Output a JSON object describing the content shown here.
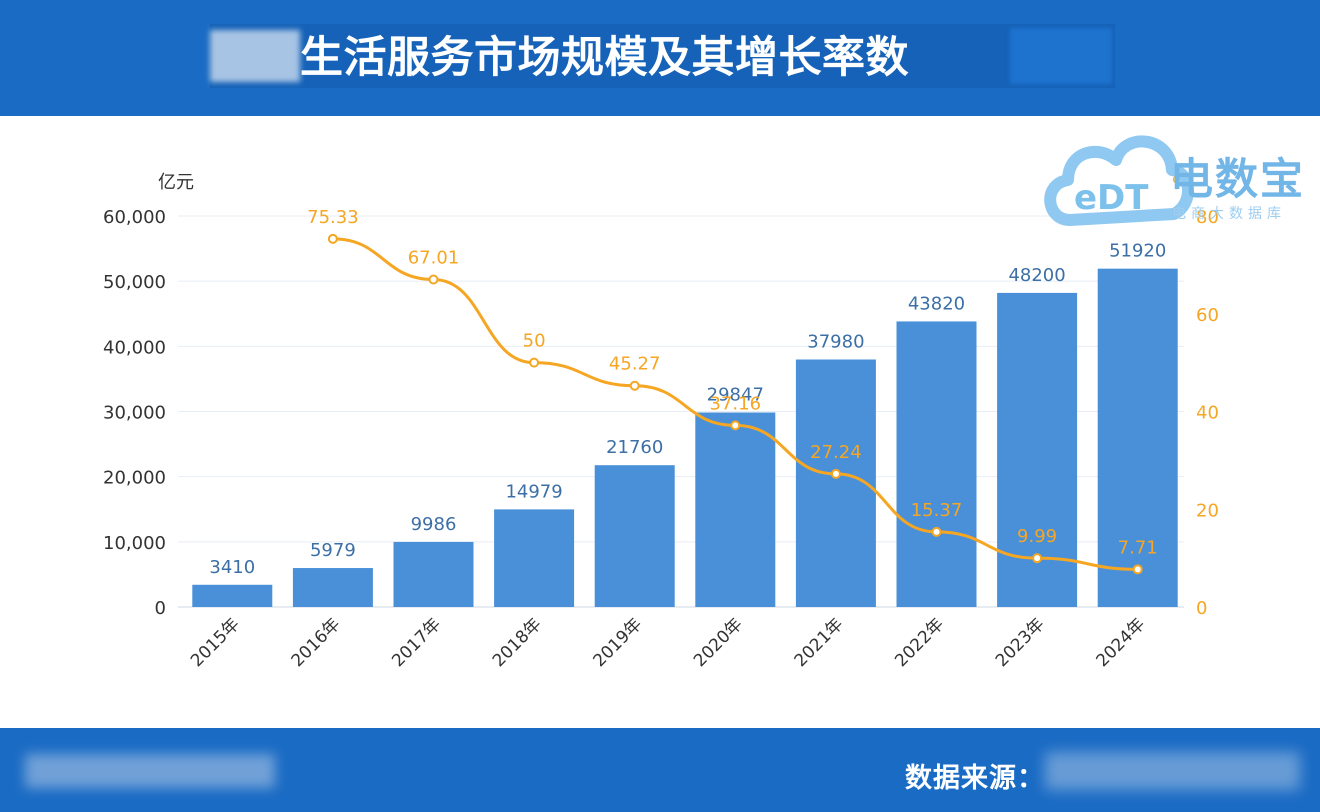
{
  "header": {
    "title": "生活服务市场规模及其增长率数"
  },
  "logo": {
    "main_text": "电数宝",
    "sub_text": "电商大数据库",
    "mark_text": "eDT"
  },
  "footer": {
    "source_label": "数据来源："
  },
  "colors": {
    "bar": "#4a90d9",
    "line": "#f5a623",
    "header_bg": "#1a6bc4"
  },
  "chart_data": {
    "type": "bar",
    "categories": [
      "2015年",
      "2016年",
      "2017年",
      "2018年",
      "2019年",
      "2020年",
      "2021年",
      "2022年",
      "2023年",
      "2024年"
    ],
    "values": [
      3410,
      5979,
      9986,
      14979,
      21760,
      29847,
      37980,
      43820,
      48200,
      51920
    ],
    "line_values": [
      null,
      75.33,
      67.01,
      50,
      45.27,
      37.16,
      27.24,
      15.37,
      9.99,
      7.71
    ],
    "left_axis_unit": "亿元",
    "right_axis_unit": "%",
    "left_ticks": [
      "0",
      "10,000",
      "20,000",
      "30,000",
      "40,000",
      "50,000",
      "60,000"
    ],
    "right_ticks": [
      "0",
      "20",
      "40",
      "60",
      "80"
    ],
    "ylim": [
      0,
      60000
    ],
    "y2lim": [
      0,
      80
    ],
    "grid": true
  }
}
